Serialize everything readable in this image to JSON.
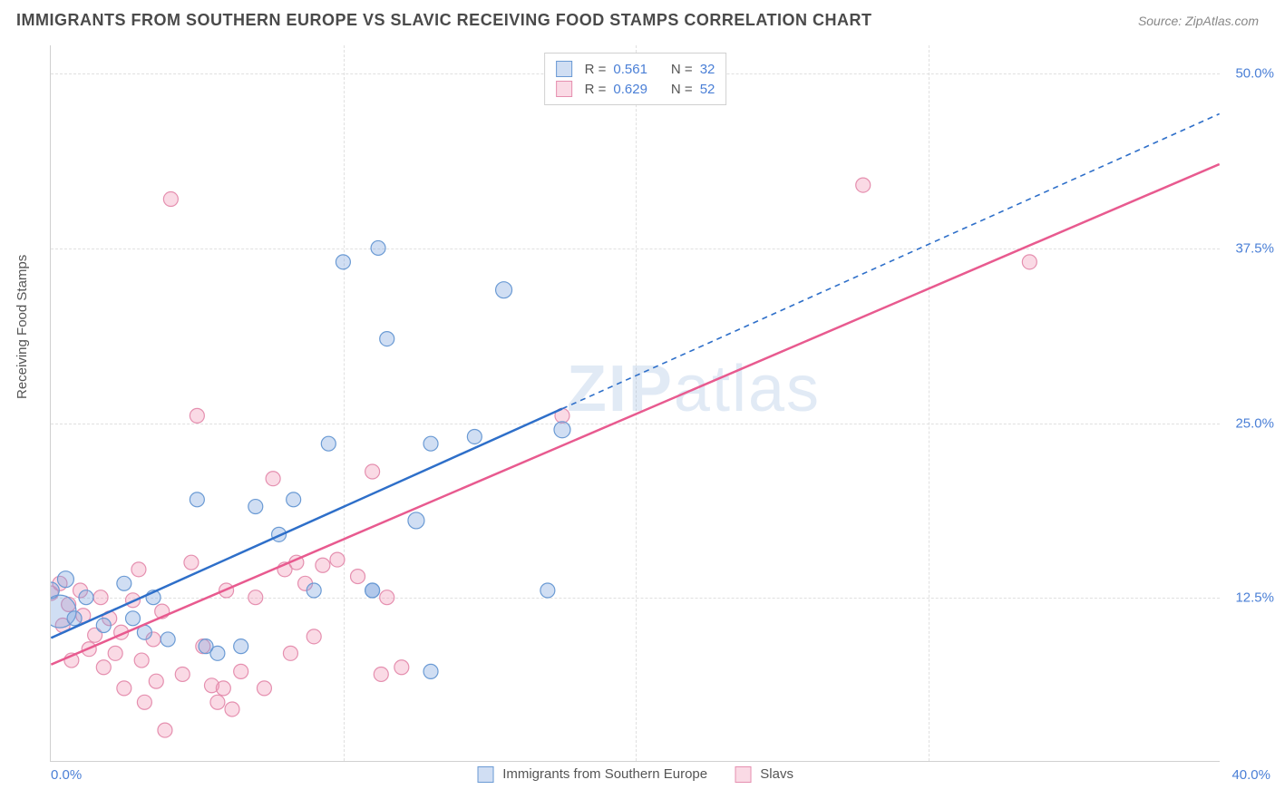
{
  "header": {
    "title": "IMMIGRANTS FROM SOUTHERN EUROPE VS SLAVIC RECEIVING FOOD STAMPS CORRELATION CHART",
    "source": "Source: ZipAtlas.com"
  },
  "chart": {
    "type": "scatter",
    "y_label": "Receiving Food Stamps",
    "xlim": [
      0,
      40
    ],
    "ylim": [
      0.8,
      52
    ],
    "x_min_label": "0.0%",
    "x_max_label": "40.0%",
    "y_ticks": [
      {
        "v": 12.5,
        "label": "12.5%"
      },
      {
        "v": 25.0,
        "label": "25.0%"
      },
      {
        "v": 37.5,
        "label": "37.5%"
      },
      {
        "v": 50.0,
        "label": "50.0%"
      }
    ],
    "x_gridlines": [
      10,
      20,
      30
    ],
    "background_color": "#ffffff",
    "grid_color": "#e0e0e0",
    "axis_color": "#d0d0d0",
    "tick_label_color": "#4a7fd6",
    "series": {
      "blue": {
        "label": "Immigrants from Southern Europe",
        "fill": "rgba(120,160,220,0.35)",
        "stroke": "#6a9ad4",
        "line_color": "#2e6fc9",
        "line_dash": "none",
        "line_dash_ext": "6,5",
        "r_value": "0.561",
        "n_value": "32",
        "points": [
          [
            0.3,
            11.5,
            18
          ],
          [
            0.5,
            13.8,
            9
          ],
          [
            0.0,
            13.0,
            9
          ],
          [
            0.8,
            11.0,
            8
          ],
          [
            1.2,
            12.5,
            8
          ],
          [
            1.8,
            10.5,
            8
          ],
          [
            2.5,
            13.5,
            8
          ],
          [
            2.8,
            11.0,
            8
          ],
          [
            3.2,
            10.0,
            8
          ],
          [
            3.5,
            12.5,
            8
          ],
          [
            4.0,
            9.5,
            8
          ],
          [
            5.0,
            19.5,
            8
          ],
          [
            5.3,
            9.0,
            8
          ],
          [
            5.7,
            8.5,
            8
          ],
          [
            6.5,
            9.0,
            8
          ],
          [
            7.0,
            19.0,
            8
          ],
          [
            7.8,
            17.0,
            8
          ],
          [
            8.3,
            19.5,
            8
          ],
          [
            9.0,
            13.0,
            8
          ],
          [
            9.5,
            23.5,
            8
          ],
          [
            10.0,
            36.5,
            8
          ],
          [
            11.0,
            13.0,
            8
          ],
          [
            11.0,
            13.0,
            8
          ],
          [
            11.2,
            37.5,
            8
          ],
          [
            11.5,
            31.0,
            8
          ],
          [
            12.5,
            18.0,
            9
          ],
          [
            13.0,
            23.5,
            8
          ],
          [
            13.0,
            7.2,
            8
          ],
          [
            14.5,
            24.0,
            8
          ],
          [
            15.5,
            34.5,
            9
          ],
          [
            17.0,
            13.0,
            8
          ],
          [
            17.5,
            24.5,
            9
          ]
        ],
        "regression": {
          "x1": 0,
          "y1": 9.6,
          "x2": 17.5,
          "y2": 26.0,
          "ext_x2": 40,
          "ext_y2": 47.1
        }
      },
      "pink": {
        "label": "Slavs",
        "fill": "rgba(240,150,180,0.35)",
        "stroke": "#e58faf",
        "line_color": "#e85a8f",
        "line_dash": "none",
        "r_value": "0.629",
        "n_value": "52",
        "points": [
          [
            0.0,
            12.8,
            8
          ],
          [
            0.3,
            13.5,
            8
          ],
          [
            0.4,
            10.5,
            8
          ],
          [
            0.6,
            12.0,
            8
          ],
          [
            0.7,
            8.0,
            8
          ],
          [
            1.0,
            13.0,
            8
          ],
          [
            1.1,
            11.2,
            8
          ],
          [
            1.3,
            8.8,
            8
          ],
          [
            1.5,
            9.8,
            8
          ],
          [
            1.7,
            12.5,
            8
          ],
          [
            1.8,
            7.5,
            8
          ],
          [
            2.0,
            11.0,
            8
          ],
          [
            2.2,
            8.5,
            8
          ],
          [
            2.4,
            10.0,
            8
          ],
          [
            2.5,
            6.0,
            8
          ],
          [
            2.8,
            12.3,
            8
          ],
          [
            3.0,
            14.5,
            8
          ],
          [
            3.1,
            8.0,
            8
          ],
          [
            3.2,
            5.0,
            8
          ],
          [
            3.5,
            9.5,
            8
          ],
          [
            3.6,
            6.5,
            8
          ],
          [
            3.8,
            11.5,
            8
          ],
          [
            3.9,
            3.0,
            8
          ],
          [
            4.1,
            41.0,
            8
          ],
          [
            4.5,
            7.0,
            8
          ],
          [
            4.8,
            15.0,
            8
          ],
          [
            5.0,
            25.5,
            8
          ],
          [
            5.2,
            9.0,
            8
          ],
          [
            5.5,
            6.2,
            8
          ],
          [
            5.7,
            5.0,
            8
          ],
          [
            5.9,
            6.0,
            8
          ],
          [
            6.0,
            13.0,
            8
          ],
          [
            6.2,
            4.5,
            8
          ],
          [
            6.5,
            7.2,
            8
          ],
          [
            7.0,
            12.5,
            8
          ],
          [
            7.3,
            6.0,
            8
          ],
          [
            7.6,
            21.0,
            8
          ],
          [
            8.0,
            14.5,
            8
          ],
          [
            8.2,
            8.5,
            8
          ],
          [
            8.4,
            15.0,
            8
          ],
          [
            8.7,
            13.5,
            8
          ],
          [
            9.0,
            9.7,
            8
          ],
          [
            9.3,
            14.8,
            8
          ],
          [
            9.8,
            15.2,
            8
          ],
          [
            10.5,
            14.0,
            8
          ],
          [
            11.0,
            21.5,
            8
          ],
          [
            11.3,
            7.0,
            8
          ],
          [
            11.5,
            12.5,
            8
          ],
          [
            12.0,
            7.5,
            8
          ],
          [
            17.5,
            25.5,
            8
          ],
          [
            27.8,
            42.0,
            8
          ],
          [
            33.5,
            36.5,
            8
          ]
        ],
        "regression": {
          "x1": 0,
          "y1": 7.7,
          "x2": 40,
          "y2": 43.5
        }
      }
    },
    "watermark": "ZIPatlas"
  },
  "legend": {
    "top": {
      "r_label": "R  =",
      "n_label": "N  ="
    }
  }
}
